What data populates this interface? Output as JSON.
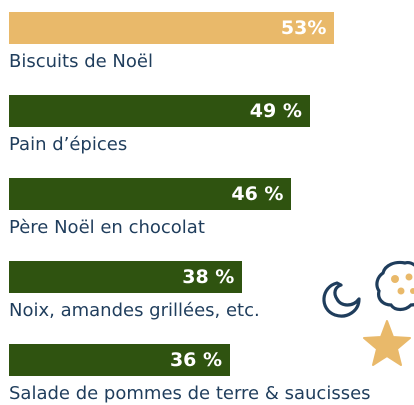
{
  "chart_data": {
    "type": "bar",
    "orientation": "horizontal",
    "title": "",
    "categories": [
      "Biscuits de Noël",
      "Pain d’épices",
      "Père Noël en chocolat",
      "Noix, amandes grillées, etc.",
      "Salade de pommes de terre & saucisses"
    ],
    "values": [
      53,
      49,
      46,
      38,
      36
    ],
    "data_labels": [
      "53%",
      "49 %",
      "46 %",
      "38 %",
      "36 %"
    ],
    "xlim": [
      0,
      100
    ],
    "grid": false,
    "legend": "none",
    "colors": {
      "highlight": "#e9b96a",
      "bar": "#2f5310",
      "label_text": "#1f3d5c",
      "bar_label_text": "#ffffff",
      "decoration_stroke": "#1f3d5c",
      "decoration_star": "#e9b96a"
    },
    "icons": [
      "cookie-icon",
      "star-icon",
      "crescent-cookie-icon"
    ]
  }
}
